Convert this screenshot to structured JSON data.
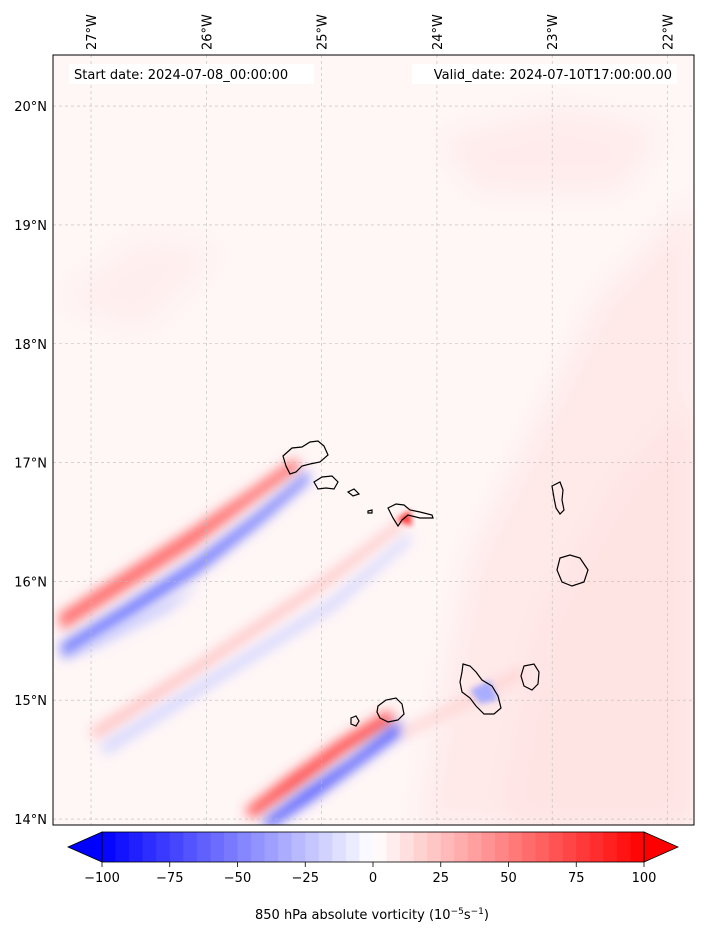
{
  "map": {
    "start_date": "Start date: 2024-07-08_00:00:00",
    "valid_date": "Valid_date: 2024-07-10T17:00:00.00",
    "lon_ticks": [
      {
        "value": -27,
        "label": "27°W"
      },
      {
        "value": -26,
        "label": "26°W"
      },
      {
        "value": -25,
        "label": "25°W"
      },
      {
        "value": -24,
        "label": "24°W"
      },
      {
        "value": -23,
        "label": "23°W"
      },
      {
        "value": -22,
        "label": "22°W"
      }
    ],
    "lat_ticks": [
      {
        "value": 14,
        "label": "14°N"
      },
      {
        "value": 15,
        "label": "15°N"
      },
      {
        "value": 16,
        "label": "16°N"
      },
      {
        "value": 17,
        "label": "17°N"
      },
      {
        "value": 18,
        "label": "18°N"
      },
      {
        "value": 19,
        "label": "19°N"
      },
      {
        "value": 20,
        "label": "20°N"
      }
    ],
    "extent": {
      "lon_min": -27.33,
      "lon_max": -21.77,
      "lat_min": 13.95,
      "lat_max": 20.43
    },
    "features": {
      "islands": "Cape Verde islands (coastlines)",
      "field": "850 hPa absolute vorticity shading"
    }
  },
  "colorbar": {
    "min": -100,
    "max": 100,
    "ticks": [
      "−100",
      "−75",
      "−50",
      "−25",
      "0",
      "25",
      "50",
      "75",
      "100"
    ],
    "tick_values": [
      -100,
      -75,
      -50,
      -25,
      0,
      25,
      50,
      75,
      100
    ],
    "label_main": "850 hPa absolute vorticity (10",
    "label_exp1": "−5",
    "label_mid": "s",
    "label_exp2": "−1",
    "label_end": ")",
    "colormap": "bwr",
    "low_color": "#0000ff",
    "mid_color": "#ffffff",
    "high_color": "#ff0000",
    "extend": "both"
  }
}
